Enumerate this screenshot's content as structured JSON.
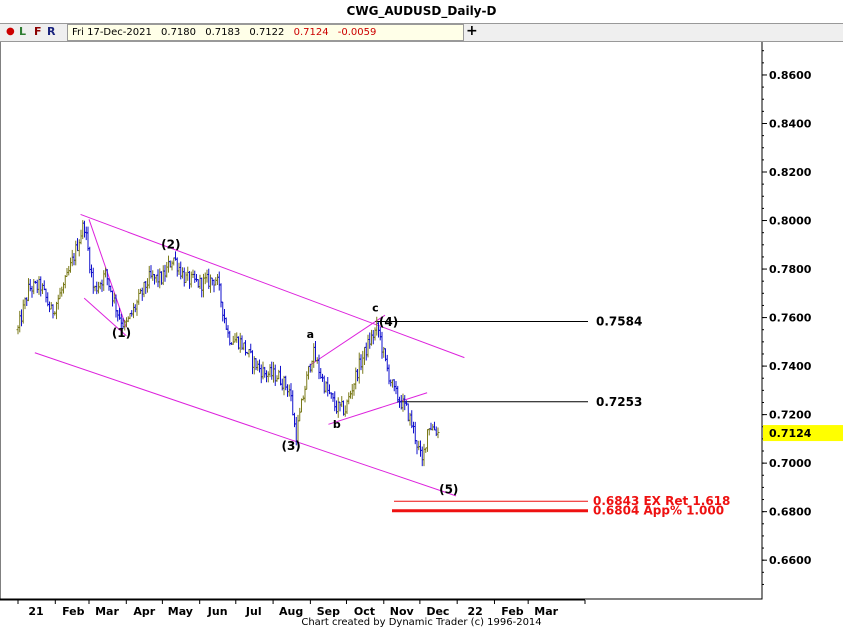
{
  "window": {
    "title": "CWG_AUDUSD_Daily-D"
  },
  "toolbar": {
    "buttons": [
      "L",
      "F",
      "R"
    ],
    "ohlc": {
      "date": "Fri 17-Dec-2021",
      "open": "0.7180",
      "high": "0.7183",
      "low": "0.7122",
      "close": "0.7124",
      "change": "-0.0059"
    },
    "crosshair_label": "+"
  },
  "footer": {
    "credit": "Chart created by Dynamic Trader  (c) 1996-2014"
  },
  "colors": {
    "up_bar": "#7a7a1a",
    "down_bar": "#1010cc",
    "channel": "#dd22dd",
    "target": "#ee1111",
    "current_price_bg": "#ffff00"
  },
  "chart_data": {
    "type": "ohlc",
    "title": "CWG_AUDUSD_Daily-D",
    "ylim": [
      0.644,
      0.874
    ],
    "y_ticks": [
      "0.8600",
      "0.8400",
      "0.8200",
      "0.8000",
      "0.7800",
      "0.7600",
      "0.7400",
      "0.7200",
      "0.7000",
      "0.6800",
      "0.6600"
    ],
    "x_ticks": [
      "21",
      "Feb",
      "Mar",
      "Apr",
      "May",
      "Jun",
      "Jul",
      "Aug",
      "Sep",
      "Oct",
      "Nov",
      "Dec",
      "22",
      "Feb",
      "Mar"
    ],
    "current_price": "0.7124",
    "price_path": [
      [
        "2021-01-01",
        0.755
      ],
      [
        "2021-01-10",
        0.772
      ],
      [
        "2021-01-20",
        0.773
      ],
      [
        "2021-01-29",
        0.762
      ],
      [
        "2021-02-10",
        0.775
      ],
      [
        "2021-02-25",
        0.799
      ],
      [
        "2021-03-05",
        0.771
      ],
      [
        "2021-03-15",
        0.778
      ],
      [
        "2021-03-25",
        0.762
      ],
      [
        "2021-03-31",
        0.756
      ],
      [
        "2021-04-10",
        0.766
      ],
      [
        "2021-04-20",
        0.776
      ],
      [
        "2021-05-01",
        0.776
      ],
      [
        "2021-05-10",
        0.785
      ],
      [
        "2021-05-20",
        0.776
      ],
      [
        "2021-06-01",
        0.774
      ],
      [
        "2021-06-15",
        0.776
      ],
      [
        "2021-06-25",
        0.752
      ],
      [
        "2021-07-05",
        0.75
      ],
      [
        "2021-07-15",
        0.742
      ],
      [
        "2021-07-25",
        0.737
      ],
      [
        "2021-08-05",
        0.736
      ],
      [
        "2021-08-15",
        0.73
      ],
      [
        "2021-08-20",
        0.711
      ],
      [
        "2021-08-27",
        0.73
      ],
      [
        "2021-09-03",
        0.746
      ],
      [
        "2021-09-12",
        0.733
      ],
      [
        "2021-09-22",
        0.723
      ],
      [
        "2021-09-30",
        0.722
      ],
      [
        "2021-10-10",
        0.738
      ],
      [
        "2021-10-20",
        0.75
      ],
      [
        "2021-10-27",
        0.756
      ],
      [
        "2021-11-03",
        0.74
      ],
      [
        "2021-11-10",
        0.729
      ],
      [
        "2021-11-20",
        0.722
      ],
      [
        "2021-11-25",
        0.715
      ],
      [
        "2021-12-03",
        0.7
      ],
      [
        "2021-12-08",
        0.716
      ],
      [
        "2021-12-14",
        0.714
      ],
      [
        "2021-12-17",
        0.712
      ]
    ],
    "annotations": [
      {
        "text": "(1)",
        "date": "2021-03-28",
        "price": 0.752
      },
      {
        "text": "(2)",
        "date": "2021-05-08",
        "price": 0.7885
      },
      {
        "text": "(3)",
        "date": "2021-08-16",
        "price": 0.7055
      },
      {
        "text": "a",
        "date": "2021-09-01",
        "price": 0.7515
      },
      {
        "text": "b",
        "date": "2021-09-23",
        "price": 0.7145
      },
      {
        "text": "c",
        "date": "2021-10-25",
        "price": 0.7625
      },
      {
        "text": "(4)",
        "date": "2021-11-05",
        "price": 0.7565
      },
      {
        "text": "(5)",
        "date": "2021-12-25",
        "price": 0.6875
      }
    ],
    "levels": [
      {
        "label": "0.7584",
        "price": 0.7584,
        "color": "#000000",
        "start_date": "2021-10-25"
      },
      {
        "label": "0.7253",
        "price": 0.7253,
        "color": "#000000",
        "start_date": "2021-11-13"
      }
    ],
    "targets": [
      {
        "label": "0.6843 EX Ret 1.618",
        "price": 0.6843
      },
      {
        "label": "0.6804 App% 1.000",
        "price": 0.6804
      }
    ],
    "channel_lines": [
      [
        [
          "2021-02-22",
          0.8025
        ],
        [
          "2022-01-07",
          0.7435
        ]
      ],
      [
        [
          "2021-01-15",
          0.7455
        ],
        [
          "2021-12-31",
          0.6865
        ]
      ],
      [
        [
          "2021-03-01",
          0.8005
        ],
        [
          "2021-04-01",
          0.756
        ]
      ],
      [
        [
          "2021-02-25",
          0.768
        ],
        [
          "2021-04-01",
          0.7525
        ]
      ],
      [
        [
          "2021-09-01",
          0.7405
        ],
        [
          "2021-11-02",
          0.761
        ]
      ],
      [
        [
          "2021-09-16",
          0.716
        ],
        [
          "2021-12-07",
          0.729
        ]
      ]
    ]
  }
}
